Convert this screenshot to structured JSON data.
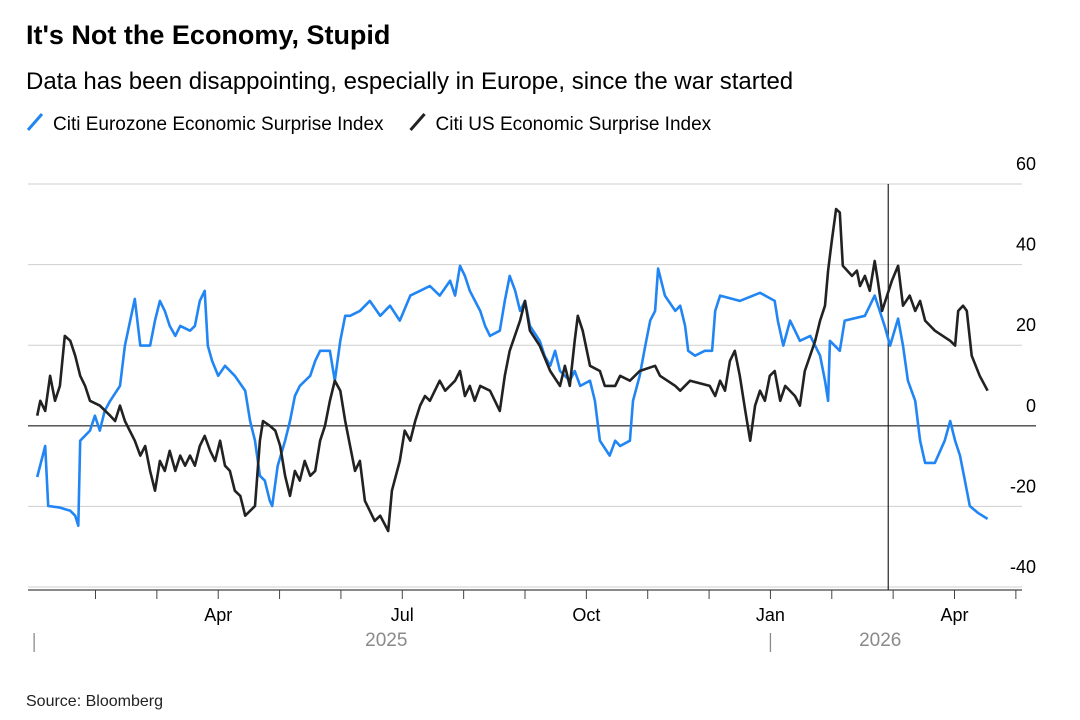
{
  "chart_data": {
    "type": "line",
    "title": "It's Not the Economy, Stupid",
    "subtitle": "Data has been disappointing, especially in Europe, since the war started",
    "source": "Source: Bloomberg",
    "xlim": [
      -0.1,
      16.1
    ],
    "ylim": [
      -40,
      60
    ],
    "yticks": [
      -40,
      -20,
      0,
      20,
      40,
      60
    ],
    "xticks": [
      {
        "value": 3,
        "label": "Apr"
      },
      {
        "value": 6,
        "label": "Jul"
      },
      {
        "value": 9,
        "label": "Oct"
      },
      {
        "value": 12,
        "label": "Jan"
      },
      {
        "value": 15,
        "label": "Apr"
      }
    ],
    "minor_xticks": [
      1,
      2,
      3,
      4,
      5,
      6,
      7,
      8,
      9,
      10,
      11,
      12,
      13,
      14,
      15,
      16
    ],
    "year_labels": [
      {
        "value": 0,
        "label": "2025"
      },
      {
        "value": 12,
        "label": "2026"
      }
    ],
    "event_line": 13.92,
    "grid": true,
    "legend": "top-left",
    "series": [
      {
        "name": "Citi Eurozone Economic Surprise Index",
        "color": "#2186f4",
        "x": [
          0.05,
          0.18,
          0.23,
          0.42,
          0.59,
          0.67,
          0.72,
          0.75,
          0.91,
          0.99,
          1.07,
          1.15,
          1.24,
          1.4,
          1.48,
          1.64,
          1.73,
          1.89,
          1.97,
          2.05,
          2.13,
          2.21,
          2.3,
          2.38,
          2.54,
          2.62,
          2.7,
          2.78,
          2.83,
          2.9,
          3.0,
          3.11,
          3.27,
          3.44,
          3.52,
          3.6,
          3.68,
          3.76,
          3.84,
          3.88,
          3.97,
          4.09,
          4.17,
          4.25,
          4.33,
          4.5,
          4.58,
          4.66,
          4.82,
          4.9,
          4.99,
          5.07,
          5.15,
          5.31,
          5.47,
          5.64,
          5.8,
          5.96,
          6.13,
          6.29,
          6.45,
          6.61,
          6.78,
          6.86,
          6.94,
          7.02,
          7.1,
          7.27,
          7.35,
          7.43,
          7.59,
          7.67,
          7.75,
          7.84,
          7.92,
          8.0,
          8.08,
          8.24,
          8.32,
          8.41,
          8.49,
          8.57,
          8.73,
          8.81,
          8.9,
          9.06,
          9.14,
          9.22,
          9.38,
          9.47,
          9.55,
          9.71,
          9.76,
          9.87,
          9.96,
          10.04,
          10.12,
          10.17,
          10.28,
          10.45,
          10.53,
          10.61,
          10.66,
          10.77,
          10.93,
          11.05,
          11.1,
          11.18,
          11.5,
          11.83,
          12.07,
          12.12,
          12.21,
          12.32,
          12.48,
          12.65,
          12.81,
          12.89,
          12.94,
          12.97,
          13.13,
          13.21,
          13.54,
          13.7,
          13.86,
          13.95,
          14.08,
          14.16,
          14.24,
          14.36,
          14.44,
          14.52,
          14.68,
          14.84,
          14.93,
          15.01,
          15.09,
          15.17,
          15.25,
          15.38,
          15.54
        ],
        "values": [
          -12.7,
          -5.0,
          -19.9,
          -20.3,
          -21.1,
          -22.3,
          -24.8,
          -3.7,
          -1.2,
          2.5,
          -1.2,
          3.7,
          6.2,
          9.9,
          19.9,
          31.5,
          19.9,
          19.9,
          26.1,
          31.0,
          28.5,
          24.8,
          22.3,
          24.8,
          23.6,
          24.8,
          31.0,
          33.5,
          19.9,
          16.1,
          12.4,
          14.9,
          12.4,
          8.7,
          1.2,
          -3.7,
          -12.4,
          -13.6,
          -18.6,
          -19.9,
          -9.9,
          -3.7,
          1.2,
          7.4,
          9.9,
          12.4,
          16.1,
          18.6,
          18.6,
          11.2,
          21.1,
          27.3,
          27.3,
          28.5,
          31.0,
          27.3,
          29.8,
          26.1,
          32.3,
          33.5,
          34.7,
          32.3,
          36.0,
          32.3,
          39.7,
          37.2,
          33.5,
          28.5,
          24.8,
          22.3,
          23.6,
          31.0,
          37.2,
          33.5,
          28.5,
          31.0,
          24.8,
          21.1,
          17.4,
          14.9,
          18.6,
          13.6,
          11.2,
          13.6,
          9.9,
          11.2,
          6.2,
          -3.7,
          -7.4,
          -3.7,
          -5.0,
          -3.7,
          6.2,
          12.4,
          19.9,
          26.1,
          28.5,
          39.0,
          32.3,
          28.5,
          29.8,
          24.8,
          18.6,
          17.4,
          18.6,
          18.6,
          28.5,
          32.3,
          31.0,
          33.0,
          31.0,
          26.1,
          19.9,
          26.1,
          21.1,
          22.3,
          17.4,
          11.2,
          6.2,
          21.1,
          18.6,
          26.1,
          27.3,
          32.3,
          24.8,
          19.9,
          26.6,
          19.9,
          11.2,
          6.2,
          -3.7,
          -9.2,
          -9.2,
          -3.7,
          1.2,
          -3.7,
          -7.4,
          -13.6,
          -19.9,
          -21.6,
          -23.1
        ]
      },
      {
        "name": "Citi US Economic Surprise Index",
        "color": "#222222",
        "x": [
          0.05,
          0.1,
          0.18,
          0.26,
          0.34,
          0.42,
          0.5,
          0.59,
          0.67,
          0.75,
          0.83,
          0.91,
          1.07,
          1.24,
          1.32,
          1.4,
          1.48,
          1.64,
          1.73,
          1.81,
          1.89,
          1.97,
          2.05,
          2.13,
          2.21,
          2.3,
          2.38,
          2.46,
          2.54,
          2.62,
          2.7,
          2.78,
          2.87,
          2.95,
          3.03,
          3.11,
          3.19,
          3.27,
          3.36,
          3.44,
          3.6,
          3.68,
          3.73,
          3.84,
          3.93,
          4.01,
          4.09,
          4.17,
          4.25,
          4.33,
          4.41,
          4.5,
          4.58,
          4.66,
          4.74,
          4.82,
          4.9,
          4.99,
          5.07,
          5.15,
          5.23,
          5.31,
          5.39,
          5.47,
          5.55,
          5.64,
          5.77,
          5.83,
          5.96,
          6.04,
          6.13,
          6.21,
          6.29,
          6.37,
          6.45,
          6.61,
          6.7,
          6.86,
          6.94,
          7.02,
          7.1,
          7.18,
          7.27,
          7.43,
          7.51,
          7.59,
          7.67,
          7.75,
          7.92,
          8.0,
          8.08,
          8.24,
          8.41,
          8.57,
          8.65,
          8.73,
          8.81,
          8.86,
          8.94,
          9.06,
          9.22,
          9.3,
          9.47,
          9.55,
          9.71,
          9.87,
          10.12,
          10.2,
          10.45,
          10.53,
          10.69,
          11.01,
          11.1,
          11.18,
          11.26,
          11.34,
          11.42,
          11.5,
          11.59,
          11.67,
          11.75,
          11.83,
          11.91,
          11.99,
          12.07,
          12.16,
          12.24,
          12.4,
          12.48,
          12.56,
          12.73,
          12.81,
          12.89,
          12.94,
          13.0,
          13.07,
          13.13,
          13.18,
          13.33,
          13.41,
          13.46,
          13.54,
          13.62,
          13.7,
          13.75,
          13.82,
          13.98,
          14.08,
          14.16,
          14.27,
          14.36,
          14.44,
          14.52,
          14.68,
          14.93,
          15.01,
          15.06,
          15.14,
          15.2,
          15.28,
          15.41,
          15.54
        ],
        "values": [
          2.5,
          6.2,
          3.7,
          12.4,
          6.2,
          9.9,
          22.3,
          21.1,
          17.4,
          12.4,
          9.9,
          6.2,
          5.0,
          2.5,
          1.2,
          5.0,
          1.2,
          -3.7,
          -7.4,
          -5.0,
          -11.2,
          -16.1,
          -8.7,
          -11.2,
          -6.2,
          -11.2,
          -7.4,
          -9.9,
          -7.4,
          -9.9,
          -5.0,
          -2.5,
          -6.2,
          -8.7,
          -3.7,
          -9.9,
          -11.2,
          -16.1,
          -17.4,
          -22.3,
          -19.9,
          -3.7,
          1.2,
          0,
          -1.2,
          -5.0,
          -12.4,
          -17.4,
          -11.2,
          -13.6,
          -8.7,
          -12.4,
          -11.2,
          -3.7,
          0,
          6.2,
          11.2,
          8.7,
          1.2,
          -5.0,
          -11.2,
          -8.7,
          -18.6,
          -21.1,
          -23.6,
          -22.3,
          -26.1,
          -16.1,
          -8.7,
          -1.2,
          -3.7,
          1.2,
          5.0,
          7.4,
          6.2,
          11.2,
          8.7,
          11.2,
          13.6,
          7.4,
          9.9,
          6.2,
          9.9,
          8.7,
          6.2,
          3.7,
          12.4,
          18.6,
          26.1,
          31.0,
          23.6,
          19.9,
          13.6,
          9.9,
          14.9,
          9.9,
          21.1,
          27.3,
          23.6,
          14.9,
          13.6,
          9.9,
          9.9,
          12.4,
          11.2,
          13.6,
          14.9,
          12.4,
          9.9,
          8.7,
          11.2,
          9.9,
          7.4,
          11.2,
          8.7,
          16.1,
          18.6,
          12.4,
          3.7,
          -3.7,
          5.0,
          8.7,
          6.2,
          12.4,
          13.6,
          6.2,
          9.9,
          7.4,
          5.0,
          13.6,
          21.1,
          26.1,
          29.8,
          38.5,
          45.9,
          53.8,
          52.9,
          39.7,
          37.2,
          38.5,
          34.7,
          37.2,
          33.5,
          40.9,
          36.0,
          28.5,
          36.0,
          39.7,
          29.8,
          32.3,
          28.5,
          31.0,
          26.1,
          23.6,
          21.1,
          19.9,
          28.5,
          29.8,
          28.5,
          17.4,
          12.4,
          8.7
        ]
      }
    ]
  }
}
